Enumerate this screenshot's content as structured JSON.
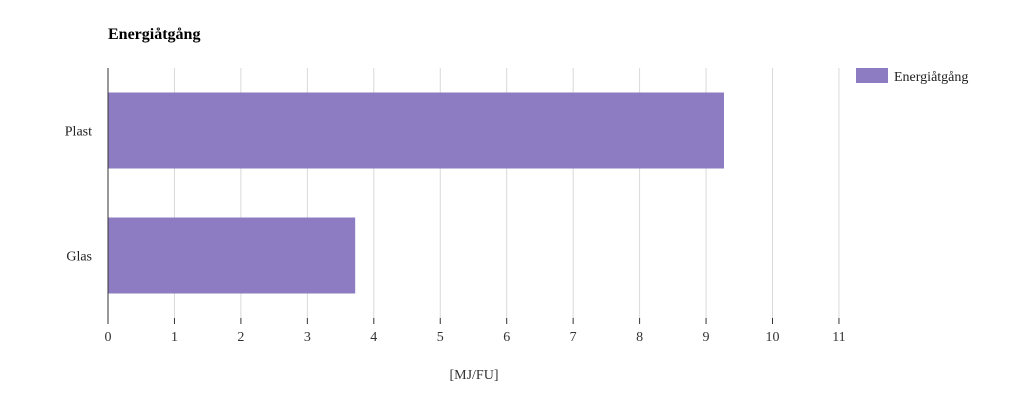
{
  "chart_data": {
    "type": "bar",
    "orientation": "horizontal",
    "title": "Energiåtgång",
    "categories": [
      "Plast",
      "Glas"
    ],
    "series": [
      {
        "name": "Energiåtgång",
        "values": [
          9.27,
          3.72
        ]
      }
    ],
    "xlabel": "[MJ/FU]",
    "ylabel": "",
    "xlim": [
      0,
      11
    ],
    "x_ticks": [
      "0",
      "1",
      "2",
      "3",
      "4",
      "5",
      "6",
      "7",
      "8",
      "9",
      "10",
      "11"
    ],
    "grid": true,
    "legend_position": "top-right",
    "colors": {
      "bar": "#8e7cc3",
      "grid": "#d9d9d9",
      "axis": "#333333"
    }
  }
}
